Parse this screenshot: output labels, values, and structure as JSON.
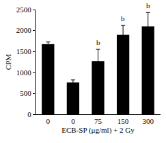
{
  "chart_data": {
    "type": "bar",
    "x_label": "ECB-SP (μg/ml) + 2 Gy",
    "y_label": "CPM",
    "categories": [
      "0",
      "0",
      "75",
      "150",
      "300"
    ],
    "values": [
      1680,
      760,
      1270,
      1900,
      2100
    ],
    "errors": [
      50,
      60,
      280,
      220,
      330
    ],
    "color": "#000000",
    "ylim": [
      0,
      2500
    ],
    "yticks": [
      0,
      500,
      1000,
      1500,
      2000,
      2500
    ],
    "grid": false,
    "annotations": [
      {
        "x": 2,
        "text": "b"
      },
      {
        "x": 3,
        "text": "b"
      },
      {
        "x": 4,
        "text": "b"
      }
    ]
  }
}
